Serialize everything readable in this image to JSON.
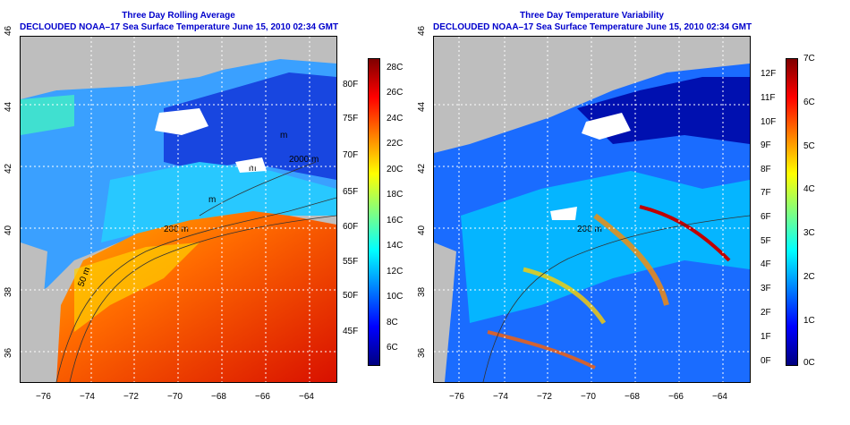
{
  "left": {
    "title": "Three Day Rolling Average",
    "subtitle": "DECLOUDED NOAA–17 Sea Surface Temperature June 15, 2010 02:34 GMT",
    "lon_ticks": [
      "−76",
      "−74",
      "−72",
      "−70",
      "−68",
      "−66",
      "−64"
    ],
    "lat_ticks": [
      "46",
      "44",
      "42",
      "40",
      "38",
      "36"
    ],
    "contours": [
      "2000 m",
      "200 m",
      "50 m",
      "m",
      "m",
      "m"
    ],
    "colorbar": {
      "celsius": [
        "28C",
        "26C",
        "24C",
        "22C",
        "20C",
        "18C",
        "16C",
        "14C",
        "12C",
        "10C",
        "8C",
        "6C"
      ],
      "fahrenheit": [
        "80F",
        "75F",
        "70F",
        "65F",
        "60F",
        "55F",
        "50F",
        "45F"
      ],
      "colors": [
        "#00007f",
        "#0000ff",
        "#0080ff",
        "#00ffff",
        "#80ff80",
        "#ffff00",
        "#ff8000",
        "#ff0000",
        "#7f0000"
      ]
    }
  },
  "right": {
    "title": "Three Day Temperature Variability",
    "subtitle": "DECLOUDED NOAA–17 Sea Surface Temperature June 15, 2010 02:34 GMT",
    "lon_ticks": [
      "−76",
      "−74",
      "−72",
      "−70",
      "−68",
      "−66",
      "−64"
    ],
    "lat_ticks": [
      "46",
      "44",
      "42",
      "40",
      "38",
      "36"
    ],
    "contours": [
      "200 m"
    ],
    "colorbar": {
      "fahrenheit": [
        "12F",
        "11F",
        "10F",
        "9F",
        "8F",
        "7F",
        "6F",
        "5F",
        "4F",
        "3F",
        "2F",
        "1F",
        "0F"
      ],
      "celsius": [
        "7C",
        "6C",
        "5C",
        "4C",
        "3C",
        "2C",
        "1C",
        "0C"
      ],
      "colors": [
        "#00007f",
        "#0000ff",
        "#0080ff",
        "#00ffff",
        "#80ff80",
        "#ffff00",
        "#ff8000",
        "#ff0000",
        "#7f0000"
      ]
    }
  }
}
